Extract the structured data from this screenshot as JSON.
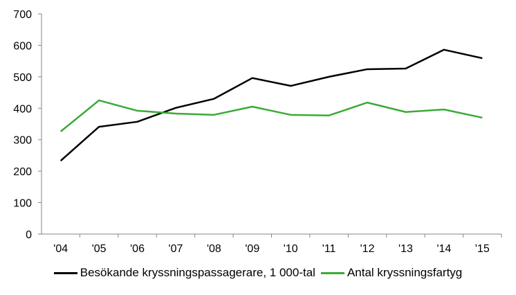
{
  "chart_data": {
    "type": "line",
    "title": "",
    "xlabel": "",
    "ylabel": "",
    "categories": [
      "'04",
      "'05",
      "'06",
      "'07",
      "'08",
      "'09",
      "'10",
      "'11",
      "'12",
      "'13",
      "'14",
      "'15"
    ],
    "ylim": [
      0,
      700
    ],
    "yticks": [
      0,
      100,
      200,
      300,
      400,
      500,
      600,
      700
    ],
    "grid": false,
    "legend_placement": "bottom",
    "series": [
      {
        "name": "Besökande kryssningspassagerare, 1 000-tal",
        "color": "#000000",
        "values": [
          233,
          341,
          357,
          401,
          430,
          496,
          471,
          500,
          524,
          526,
          586,
          559
        ]
      },
      {
        "name": "Antal kryssningsfartyg",
        "color": "#3aaa35",
        "values": [
          326,
          425,
          392,
          383,
          379,
          405,
          379,
          377,
          418,
          388,
          396,
          370
        ]
      }
    ]
  }
}
